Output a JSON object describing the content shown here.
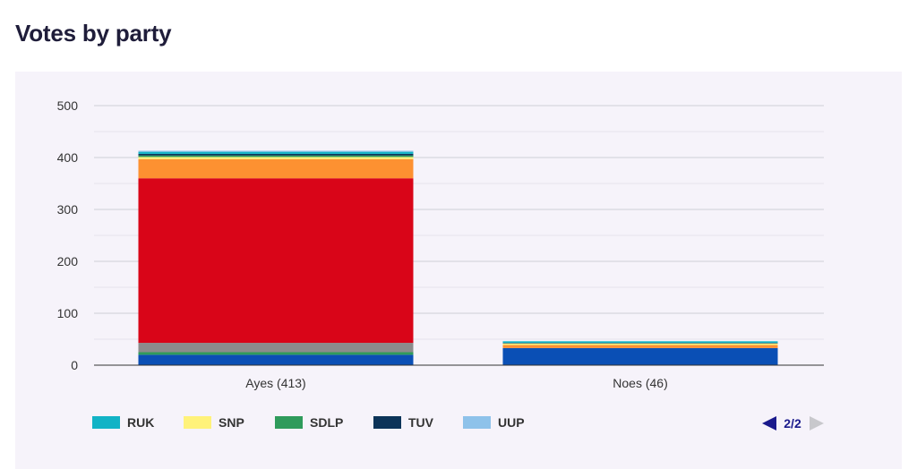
{
  "title": "Votes by party",
  "chart_data": {
    "type": "bar",
    "stacked": true,
    "categories": [
      "Ayes (413)",
      "Noes (46)"
    ],
    "y_ticks": [
      "0",
      "100",
      "200",
      "300",
      "400",
      "500"
    ],
    "ylim": [
      0,
      500
    ],
    "grid": true,
    "series": [
      {
        "color": "#0a4fb5",
        "values": [
          20,
          33
        ]
      },
      {
        "color": "#2f9b5b",
        "values": [
          5,
          0
        ]
      },
      {
        "color": "#8c8c8c",
        "values": [
          18,
          0
        ]
      },
      {
        "color": "#d90518",
        "values": [
          317,
          0
        ]
      },
      {
        "color": "#fd9131",
        "values": [
          37,
          6
        ]
      },
      {
        "name": "SNP",
        "color": "#fff27a",
        "values": [
          4,
          3
        ]
      },
      {
        "name": "SDLP",
        "color": "#2f9b5b",
        "values": [
          3,
          0
        ]
      },
      {
        "name": "TUV",
        "color": "#0c3458",
        "values": [
          3,
          1
        ]
      },
      {
        "name": "RUK",
        "color": "#12b3c6",
        "values": [
          4,
          3
        ]
      },
      {
        "name": "UUP",
        "color": "#8ec2ea",
        "values": [
          2,
          0
        ]
      }
    ],
    "legend_position": "bottom-left",
    "legend": [
      {
        "name": "RUK",
        "color": "#12b3c6"
      },
      {
        "name": "SNP",
        "color": "#fff27a"
      },
      {
        "name": "SDLP",
        "color": "#2f9b5b"
      },
      {
        "name": "TUV",
        "color": "#0c3458"
      },
      {
        "name": "UUP",
        "color": "#8ec2ea"
      }
    ]
  },
  "pager": {
    "label": "2/2",
    "prev_color": "#1a1a8c",
    "next_color": "#c8c8cc"
  }
}
